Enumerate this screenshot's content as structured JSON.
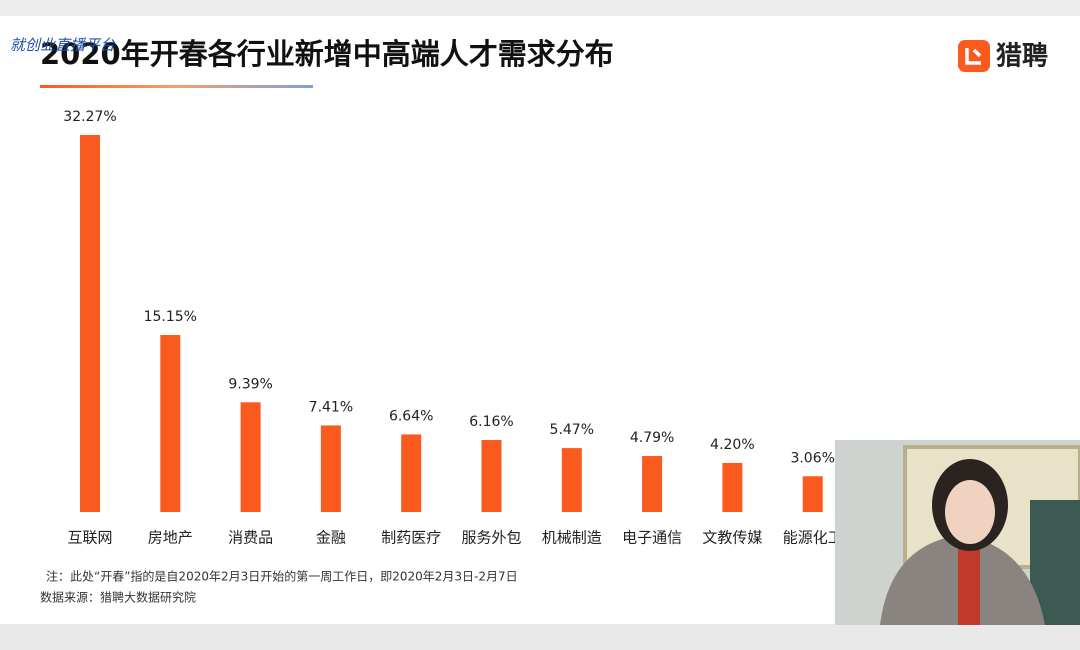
{
  "chart_data": {
    "type": "bar",
    "title": "2020年开春各行业新增中高端人才需求分布",
    "brand": "猎聘",
    "watermark": "就创业直播平台",
    "categories": [
      "互联网",
      "房地产",
      "消费品",
      "金融",
      "制药医疗",
      "服务外包",
      "机械制造",
      "电子通信",
      "文教传媒",
      "能源化工"
    ],
    "values": [
      32.27,
      15.15,
      9.39,
      7.41,
      6.64,
      6.16,
      5.47,
      4.79,
      4.2,
      3.06
    ],
    "value_labels": [
      "32.27%",
      "15.15%",
      "9.39%",
      "7.41%",
      "6.64%",
      "6.16%",
      "5.47%",
      "4.79%",
      "4.20%",
      "3.06%"
    ],
    "color": "#fa5a1e",
    "notes": [
      "注：此处“开春”指的是自2020年2月3日开始的第一周工作日，即2020年2月3日-2月7日",
      "数据来源：猎聘大数据研究院"
    ]
  }
}
